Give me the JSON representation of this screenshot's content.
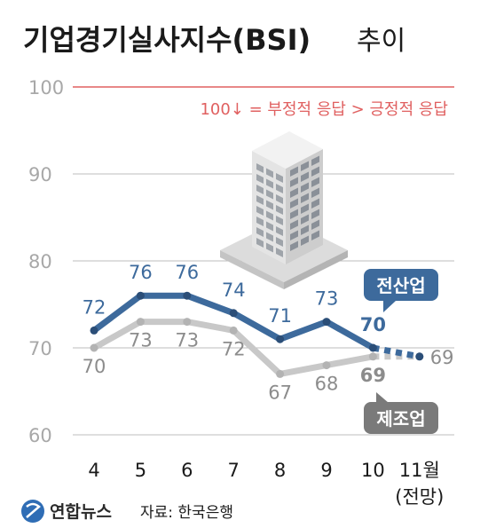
{
  "title": "기업경기실사지수(BSI)",
  "title_suffix": "추이",
  "reference_note": "100↓ = 부정적 응답 > 긍정적 응답",
  "logo_text": "연합뉴스",
  "source": "자료: 한국은행",
  "colors": {
    "all_industry": "#3d6a9c",
    "all_industry_label": "#3d6a9c",
    "manufacturing": "#c8c8c8",
    "manufacturing_label": "#8c8c8c",
    "reference_line": "#e06060",
    "note": "#e06060",
    "grid": "#bdbdbd",
    "badge_all": "#3d6a9c",
    "badge_mfg": "#7a7a7a"
  },
  "chart_data": {
    "type": "line",
    "categories": [
      "4",
      "5",
      "6",
      "7",
      "8",
      "9",
      "10",
      "11월"
    ],
    "category_sublabels": [
      "",
      "",
      "",
      "",
      "",
      "",
      "",
      "(전망)"
    ],
    "ylim": [
      60,
      100
    ],
    "yticks": [
      60,
      70,
      80,
      90,
      100
    ],
    "reference_value": 100,
    "grid": true,
    "series": [
      {
        "name": "전산업",
        "values": [
          72,
          76,
          76,
          74,
          71,
          73,
          70,
          69
        ],
        "labels": [
          "72",
          "76",
          "76",
          "74",
          "71",
          "73",
          "70",
          "69"
        ],
        "forecast_from_index": 6
      },
      {
        "name": "제조업",
        "values": [
          70,
          73,
          73,
          72,
          67,
          68,
          69,
          69
        ],
        "labels": [
          "70",
          "73",
          "73",
          "72",
          "67",
          "68",
          "69",
          ""
        ],
        "forecast_from_index": 6
      }
    ]
  }
}
